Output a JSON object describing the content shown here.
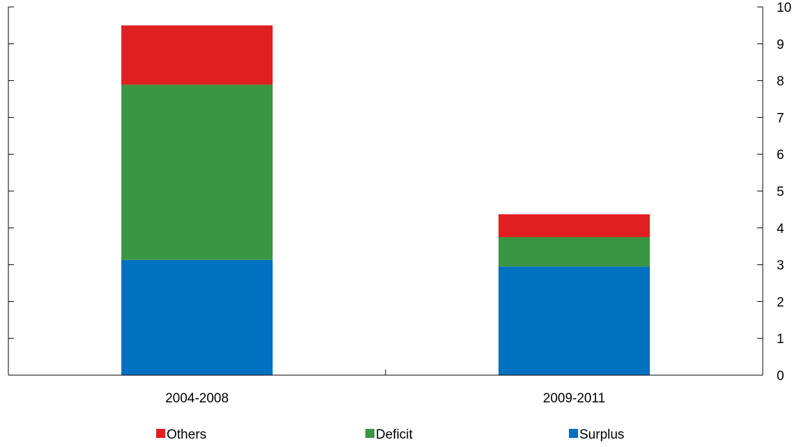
{
  "chart_data": {
    "type": "bar",
    "stacked": true,
    "categories": [
      "2004-2008",
      "2009-2011"
    ],
    "series": [
      {
        "name": "Surplus",
        "color": "#0070c0",
        "values": [
          3.13,
          2.95
        ]
      },
      {
        "name": "Deficit",
        "color": "#3a9643",
        "values": [
          4.76,
          0.8
        ]
      },
      {
        "name": "Others",
        "color": "#e02020",
        "values": [
          1.61,
          0.62
        ]
      }
    ],
    "legend_order": [
      "Others",
      "Deficit",
      "Surplus"
    ],
    "title": "",
    "xlabel": "",
    "ylabel": "",
    "ylim": [
      0,
      10
    ],
    "y_ticks": [
      0,
      1,
      2,
      3,
      4,
      5,
      6,
      7,
      8,
      9,
      10
    ],
    "y_axis_side": "right",
    "grid": false,
    "legend_position": "bottom"
  }
}
